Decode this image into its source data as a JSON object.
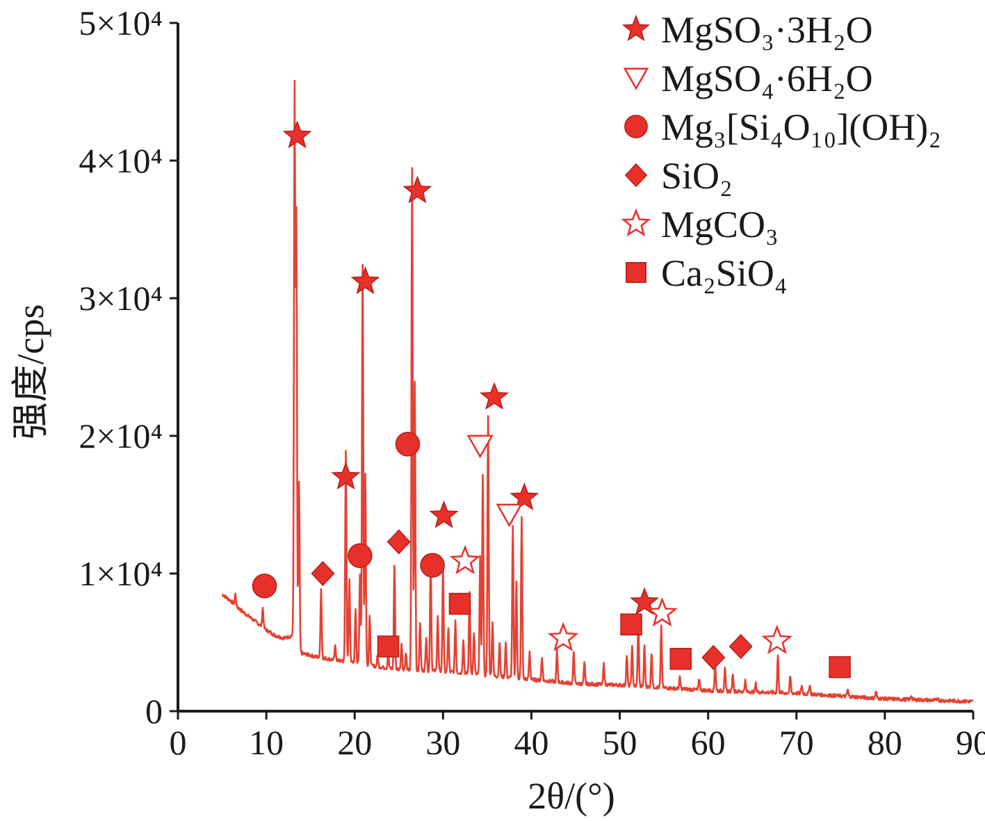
{
  "colors": {
    "trace": "#e34234",
    "marker": "#e8302a",
    "marker_stroke": "#b31d17",
    "axis": "#1a1a1a"
  },
  "chart_data": {
    "type": "line",
    "xlabel": "2θ/(°)",
    "ylabel": "强度/cps",
    "xlim": [
      0,
      90
    ],
    "ylim": [
      0,
      50000
    ],
    "xticks": [
      0,
      10,
      20,
      30,
      40,
      50,
      60,
      70,
      80,
      90
    ],
    "yticks": [
      {
        "value": 0,
        "label": "0"
      },
      {
        "value": 10000,
        "label": "1×10⁴"
      },
      {
        "value": 20000,
        "label": "2×10⁴"
      },
      {
        "value": 30000,
        "label": "3×10⁴"
      },
      {
        "value": 40000,
        "label": "4×10⁴"
      },
      {
        "value": 50000,
        "label": "5×10⁴"
      }
    ],
    "grid": false,
    "legend_position": "top-right",
    "legend": [
      {
        "marker": "star-filled",
        "label": "MgSO₃·3H₂O"
      },
      {
        "marker": "triangle-down-open",
        "label": "MgSO₄·6H₂O"
      },
      {
        "marker": "circle-filled",
        "label": "Mg₃[Si₄O₁₀](OH)₂"
      },
      {
        "marker": "diamond-filled",
        "label": "SiO₂"
      },
      {
        "marker": "star-open",
        "label": "MgCO₃"
      },
      {
        "marker": "square-filled",
        "label": "Ca₂SiO₄"
      }
    ],
    "background": [
      [
        5,
        8500
      ],
      [
        6,
        8000
      ],
      [
        7,
        7400
      ],
      [
        8,
        6900
      ],
      [
        9,
        6400
      ],
      [
        10,
        5900
      ],
      [
        11,
        5500
      ],
      [
        12,
        5300
      ],
      [
        13,
        5500
      ],
      [
        14,
        4200
      ],
      [
        16,
        3900
      ],
      [
        18,
        3700
      ],
      [
        20,
        3500
      ],
      [
        22,
        3300
      ],
      [
        24,
        3100
      ],
      [
        26,
        3000
      ],
      [
        30,
        2900
      ],
      [
        35,
        2600
      ],
      [
        40,
        2300
      ],
      [
        45,
        2000
      ],
      [
        50,
        1900
      ],
      [
        55,
        1700
      ],
      [
        60,
        1500
      ],
      [
        65,
        1400
      ],
      [
        70,
        1300
      ],
      [
        75,
        1100
      ],
      [
        80,
        900
      ],
      [
        85,
        800
      ],
      [
        90,
        700
      ]
    ],
    "peaks": [
      [
        6.5,
        800
      ],
      [
        9.6,
        1400
      ],
      [
        13.2,
        40000
      ],
      [
        13.4,
        31000
      ],
      [
        13.7,
        12000
      ],
      [
        16.2,
        5000
      ],
      [
        17.8,
        1000
      ],
      [
        19.0,
        15300
      ],
      [
        19.4,
        6000
      ],
      [
        20.1,
        4000
      ],
      [
        20.6,
        6500
      ],
      [
        20.9,
        29000
      ],
      [
        21.2,
        14000
      ],
      [
        21.7,
        3500
      ],
      [
        22.6,
        800
      ],
      [
        23.8,
        1000
      ],
      [
        24.5,
        7500
      ],
      [
        25.3,
        2000
      ],
      [
        25.8,
        1200
      ],
      [
        26.5,
        36500
      ],
      [
        26.8,
        21000
      ],
      [
        27.4,
        3500
      ],
      [
        28.1,
        2500
      ],
      [
        28.6,
        8000
      ],
      [
        29.4,
        4000
      ],
      [
        30.0,
        7500
      ],
      [
        30.6,
        3200
      ],
      [
        31.4,
        3800
      ],
      [
        32.3,
        2500
      ],
      [
        33.0,
        6000
      ],
      [
        33.5,
        3000
      ],
      [
        34.2,
        8500
      ],
      [
        34.5,
        14500
      ],
      [
        35.1,
        18800
      ],
      [
        35.6,
        4000
      ],
      [
        36.4,
        2500
      ],
      [
        37.1,
        2500
      ],
      [
        37.9,
        11000
      ],
      [
        38.3,
        7000
      ],
      [
        38.9,
        11700
      ],
      [
        39.8,
        2000
      ],
      [
        41.2,
        1700
      ],
      [
        42.9,
        2300
      ],
      [
        44.8,
        2300
      ],
      [
        46.0,
        1500
      ],
      [
        48.2,
        1500
      ],
      [
        50.8,
        2200
      ],
      [
        51.4,
        2800
      ],
      [
        52.1,
        4700
      ],
      [
        52.8,
        3000
      ],
      [
        53.6,
        2500
      ],
      [
        54.7,
        4400
      ],
      [
        56.8,
        800
      ],
      [
        59.0,
        800
      ],
      [
        60.8,
        2000
      ],
      [
        61.9,
        1600
      ],
      [
        62.8,
        1300
      ],
      [
        64.2,
        800
      ],
      [
        65.4,
        600
      ],
      [
        67.9,
        2700
      ],
      [
        69.3,
        1200
      ],
      [
        70.6,
        600
      ],
      [
        71.5,
        700
      ],
      [
        75.8,
        500
      ],
      [
        79.0,
        500
      ],
      [
        83.0,
        300
      ],
      [
        86.0,
        200
      ]
    ],
    "markers": [
      {
        "x": 13.5,
        "y": 41800,
        "shape": "star-filled"
      },
      {
        "x": 21.2,
        "y": 31200,
        "shape": "star-filled"
      },
      {
        "x": 27.1,
        "y": 37800,
        "shape": "star-filled"
      },
      {
        "x": 19.0,
        "y": 17000,
        "shape": "star-filled"
      },
      {
        "x": 30.1,
        "y": 14200,
        "shape": "star-filled"
      },
      {
        "x": 35.8,
        "y": 22800,
        "shape": "star-filled"
      },
      {
        "x": 39.2,
        "y": 15500,
        "shape": "star-filled"
      },
      {
        "x": 52.8,
        "y": 7900,
        "shape": "star-filled"
      },
      {
        "x": 34.2,
        "y": 19300,
        "shape": "triangle-down-open"
      },
      {
        "x": 37.5,
        "y": 14300,
        "shape": "triangle-down-open"
      },
      {
        "x": 9.8,
        "y": 9100,
        "shape": "circle-filled"
      },
      {
        "x": 20.6,
        "y": 11300,
        "shape": "circle-filled"
      },
      {
        "x": 26.0,
        "y": 19400,
        "shape": "circle-filled"
      },
      {
        "x": 28.8,
        "y": 10600,
        "shape": "circle-filled"
      },
      {
        "x": 16.4,
        "y": 10000,
        "shape": "diamond-filled"
      },
      {
        "x": 25.0,
        "y": 12300,
        "shape": "diamond-filled"
      },
      {
        "x": 60.6,
        "y": 3900,
        "shape": "diamond-filled"
      },
      {
        "x": 63.7,
        "y": 4700,
        "shape": "diamond-filled"
      },
      {
        "x": 32.5,
        "y": 10900,
        "shape": "star-open"
      },
      {
        "x": 43.6,
        "y": 5300,
        "shape": "star-open"
      },
      {
        "x": 54.8,
        "y": 7100,
        "shape": "star-open"
      },
      {
        "x": 67.8,
        "y": 5100,
        "shape": "star-open"
      },
      {
        "x": 23.8,
        "y": 4700,
        "shape": "square-filled"
      },
      {
        "x": 31.9,
        "y": 7800,
        "shape": "square-filled"
      },
      {
        "x": 51.3,
        "y": 6300,
        "shape": "square-filled"
      },
      {
        "x": 56.9,
        "y": 3800,
        "shape": "square-filled"
      },
      {
        "x": 74.9,
        "y": 3200,
        "shape": "square-filled"
      }
    ]
  }
}
